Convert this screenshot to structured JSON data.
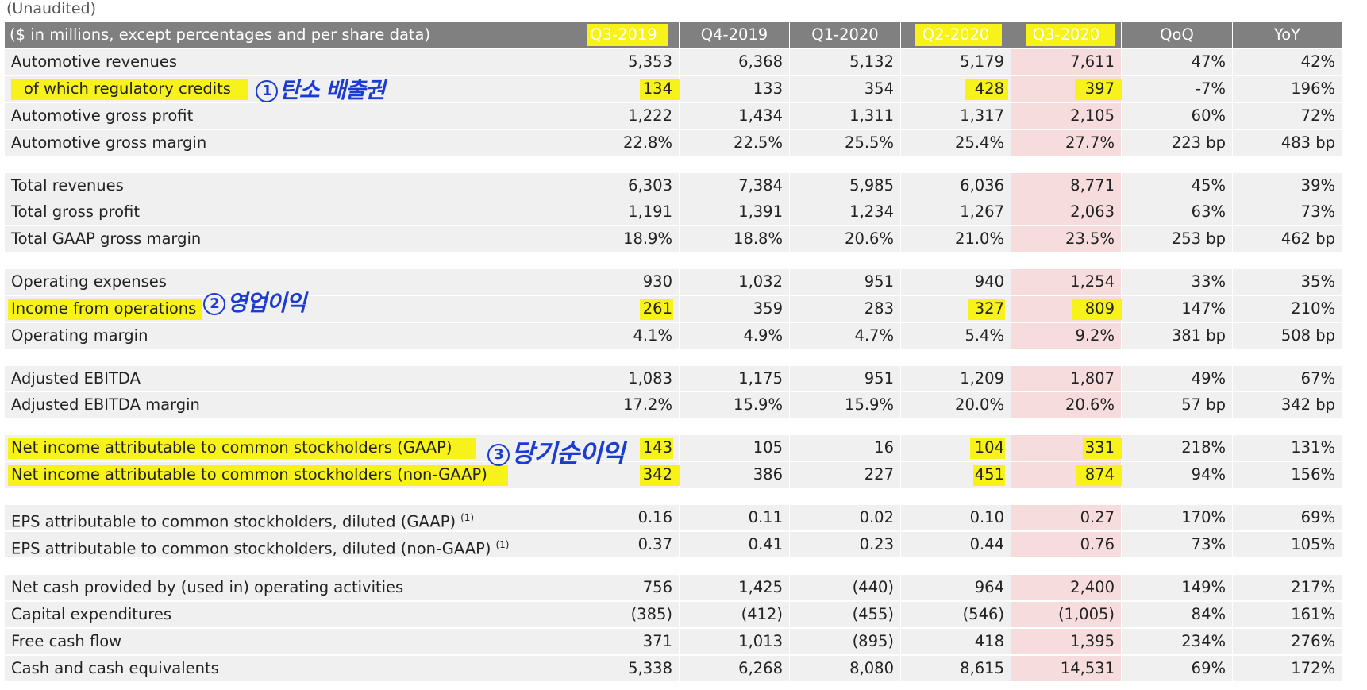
{
  "unaudited": "(Unaudited)",
  "table": {
    "columns": [
      "($ in millions, except percentages and per share data)",
      "Q3-2019",
      "Q4-2019",
      "Q1-2020",
      "Q2-2020",
      "Q3-2020",
      "QoQ",
      "YoY"
    ],
    "rows": [
      [
        "Automotive revenues",
        "5,353",
        "6,368",
        "5,132",
        "5,179",
        "7,611",
        "47%",
        "42%"
      ],
      [
        " of which regulatory credits",
        "134",
        "133",
        "354",
        "428",
        "397",
        "-7%",
        "196%"
      ],
      [
        "Automotive gross profit",
        "1,222",
        "1,434",
        "1,311",
        "1,317",
        "2,105",
        "60%",
        "72%"
      ],
      [
        "Automotive gross margin",
        "22.8%",
        "22.5%",
        "25.5%",
        "25.4%",
        "27.7%",
        "223 bp",
        "483 bp"
      ],
      [
        "Total revenues",
        "6,303",
        "7,384",
        "5,985",
        "6,036",
        "8,771",
        "45%",
        "39%"
      ],
      [
        "Total gross profit",
        "1,191",
        "1,391",
        "1,234",
        "1,267",
        "2,063",
        "63%",
        "73%"
      ],
      [
        "Total GAAP gross margin",
        "18.9%",
        "18.8%",
        "20.6%",
        "21.0%",
        "23.5%",
        "253 bp",
        "462 bp"
      ],
      [
        "Operating expenses",
        "930",
        "1,032",
        "951",
        "940",
        "1,254",
        "33%",
        "35%"
      ],
      [
        "Income from operations",
        "261",
        "359",
        "283",
        "327",
        "809",
        "147%",
        "210%"
      ],
      [
        "Operating margin",
        "4.1%",
        "4.9%",
        "4.7%",
        "5.4%",
        "9.2%",
        "381 bp",
        "508 bp"
      ],
      [
        "Adjusted EBITDA",
        "1,083",
        "1,175",
        "951",
        "1,209",
        "1,807",
        "49%",
        "67%"
      ],
      [
        "Adjusted EBITDA margin",
        "17.2%",
        "15.9%",
        "15.9%",
        "20.0%",
        "20.6%",
        "57 bp",
        "342 bp"
      ],
      [
        "Net income attributable to common stockholders (GAAP)",
        "143",
        "105",
        "16",
        "104",
        "331",
        "218%",
        "131%"
      ],
      [
        "Net income attributable to common stockholders (non-GAAP)",
        "342",
        "386",
        "227",
        "451",
        "874",
        "94%",
        "156%"
      ],
      [
        "EPS attributable to common stockholders, diluted (GAAP)",
        "0.16",
        "0.11",
        "0.02",
        "0.10",
        "0.27",
        "170%",
        "69%"
      ],
      [
        "EPS attributable to common stockholders, diluted (non-GAAP)",
        "0.37",
        "0.41",
        "0.23",
        "0.44",
        "0.76",
        "73%",
        "105%"
      ],
      [
        "Net cash provided by (used in) operating activities",
        "756",
        "1,425",
        "(440)",
        "964",
        "2,400",
        "149%",
        "217%"
      ],
      [
        "Capital expenditures",
        "(385)",
        "(412)",
        "(455)",
        "(546)",
        "(1,005)",
        "84%",
        "161%"
      ],
      [
        "Free cash flow",
        "371",
        "1,013",
        "(895)",
        "418",
        "1,395",
        "234%",
        "276%"
      ],
      [
        "Cash and cash equivalents",
        "5,338",
        "6,268",
        "8,080",
        "8,615",
        "14,531",
        "69%",
        "172%"
      ]
    ],
    "footnote_marker": "(1)"
  },
  "annotations": {
    "note1": {
      "num": "1",
      "text": "탄소 배출권"
    },
    "note2": {
      "num": "2",
      "text": "영업이익"
    },
    "note3": {
      "num": "3",
      "text": "당기순이익"
    }
  },
  "colors": {
    "header_bg": "#808080",
    "row_bg": "#f0f0f0",
    "q3_2020_bg": "#f6dcdc",
    "highlight": "#f7f21a",
    "handwriting": "#1b3bd1"
  }
}
